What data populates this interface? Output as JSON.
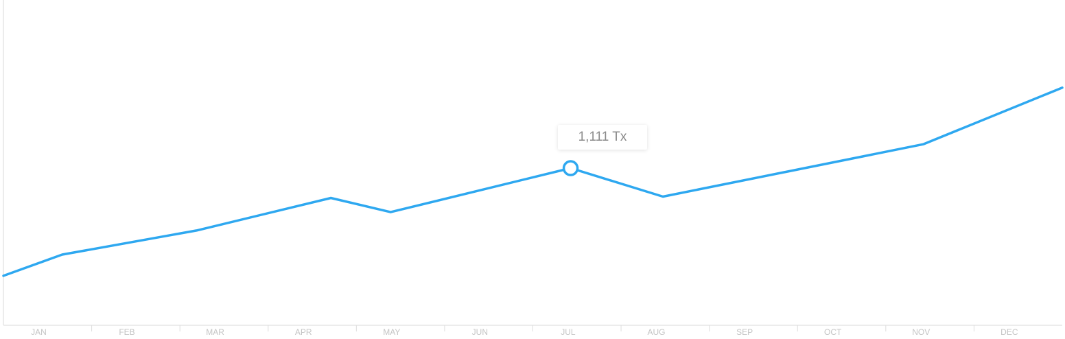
{
  "chart_data": {
    "type": "line",
    "categories": [
      "JAN",
      "FEB",
      "MAR",
      "APR",
      "MAY",
      "JUN",
      "JUL",
      "AUG",
      "SEP",
      "OCT",
      "NOV",
      "DEC"
    ],
    "series": [
      {
        "color": "#2ea8f0",
        "points": [
          {
            "month": 0.0,
            "value": 350
          },
          {
            "month": 0.63,
            "value": 500
          },
          {
            "month": 2.07,
            "value": 670
          },
          {
            "month": 3.51,
            "value": 900
          },
          {
            "month": 4.15,
            "value": 800
          },
          {
            "month": 6.08,
            "value": 1111
          },
          {
            "month": 7.07,
            "value": 910
          },
          {
            "month": 9.86,
            "value": 1280
          },
          {
            "month": 11.35,
            "value": 1680
          }
        ]
      }
    ],
    "highlight": {
      "month": 6.08,
      "value": 1111,
      "label": "1,111 Tx"
    },
    "xlim": [
      0,
      11.35
    ],
    "ylim": [
      0,
      2300
    ],
    "grid": false,
    "legend": "none"
  }
}
